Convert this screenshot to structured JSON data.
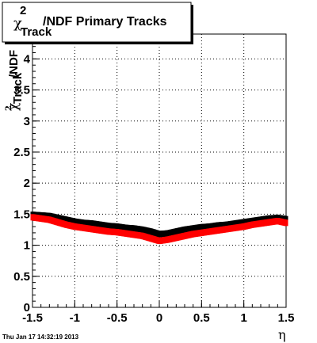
{
  "title": {
    "chi": "χ",
    "sup": "2",
    "sub": "Track",
    "rest": "/NDF  Primary Tracks"
  },
  "ylabel": {
    "chi": "χ",
    "sup": "2",
    "sub": "Track",
    "rest": "/NDF"
  },
  "xlabel": "η",
  "footer": "Thu Jan 17 14:32:19 2013",
  "colors": {
    "black_series": "#000000",
    "red_series": "#ff0000",
    "grid": "#000000"
  },
  "chart_data": {
    "type": "scatter",
    "title": "χ²_Track/NDF  Primary Tracks",
    "xlabel": "η",
    "ylabel": "χ²_Track/NDF",
    "xlim": [
      -1.5,
      1.5
    ],
    "ylim": [
      0,
      4.4
    ],
    "grid": true,
    "legend": "none",
    "x_ticks": [
      "-1.5",
      "-1",
      "-0.5",
      "0",
      "0.5",
      "1",
      "1.5"
    ],
    "y_ticks": [
      "0",
      "0.5",
      "1",
      "1.5",
      "2",
      "2.5",
      "3",
      "3.5",
      "4"
    ],
    "series": [
      {
        "color": "#000000",
        "x": [
          -1.5,
          -1.4,
          -1.3,
          -1.2,
          -1.1,
          -1.0,
          -0.9,
          -0.8,
          -0.7,
          -0.6,
          -0.5,
          -0.4,
          -0.3,
          -0.2,
          -0.1,
          0.0,
          0.1,
          0.2,
          0.3,
          0.4,
          0.5,
          0.6,
          0.7,
          0.8,
          0.9,
          1.0,
          1.1,
          1.2,
          1.3,
          1.4,
          1.5
        ],
        "y": [
          1.49,
          1.48,
          1.47,
          1.44,
          1.41,
          1.38,
          1.36,
          1.35,
          1.33,
          1.31,
          1.3,
          1.28,
          1.27,
          1.25,
          1.22,
          1.18,
          1.19,
          1.22,
          1.25,
          1.27,
          1.29,
          1.3,
          1.32,
          1.33,
          1.35,
          1.37,
          1.39,
          1.41,
          1.43,
          1.44,
          1.42
        ]
      },
      {
        "color": "#ff0000",
        "x": [
          -1.5,
          -1.4,
          -1.3,
          -1.2,
          -1.1,
          -1.0,
          -0.9,
          -0.8,
          -0.7,
          -0.6,
          -0.5,
          -0.4,
          -0.3,
          -0.2,
          -0.1,
          0.0,
          0.1,
          0.2,
          0.3,
          0.4,
          0.5,
          0.6,
          0.7,
          0.8,
          0.9,
          1.0,
          1.1,
          1.2,
          1.3,
          1.4,
          1.5
        ],
        "y": [
          1.45,
          1.43,
          1.41,
          1.37,
          1.33,
          1.3,
          1.28,
          1.26,
          1.24,
          1.22,
          1.21,
          1.19,
          1.17,
          1.15,
          1.11,
          1.07,
          1.09,
          1.12,
          1.15,
          1.18,
          1.2,
          1.22,
          1.24,
          1.26,
          1.28,
          1.3,
          1.33,
          1.35,
          1.37,
          1.39,
          1.36
        ]
      }
    ]
  }
}
